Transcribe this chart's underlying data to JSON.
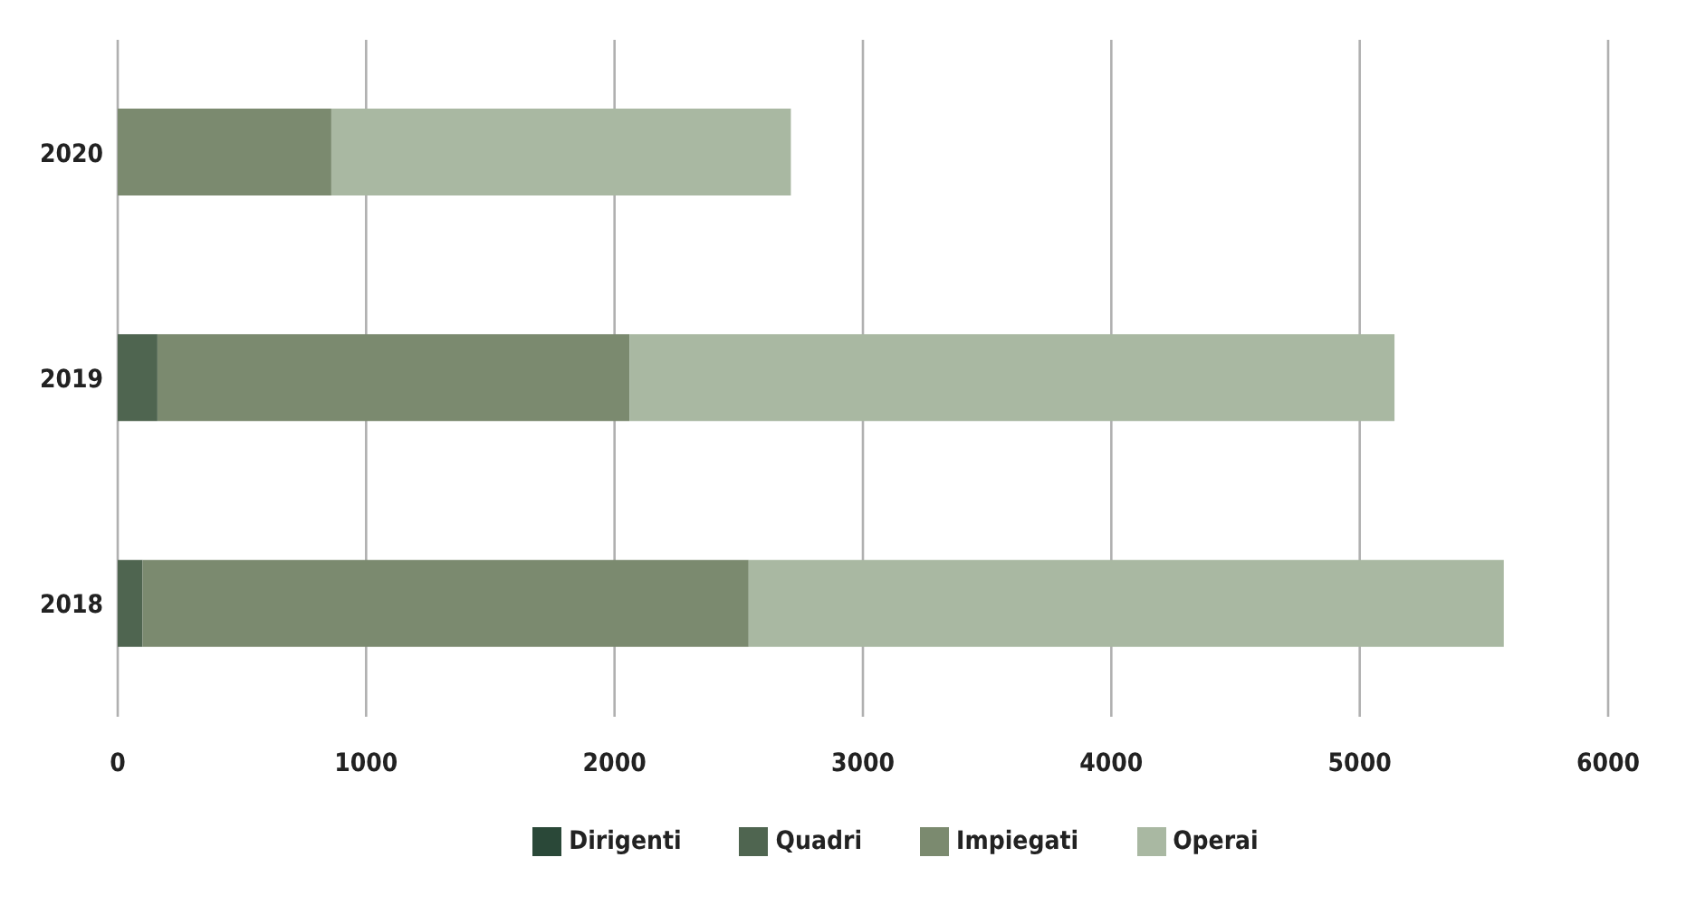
{
  "chart_data": {
    "type": "bar",
    "orientation": "horizontal",
    "stacked": true,
    "categories": [
      "2020",
      "2019",
      "2018"
    ],
    "series": [
      {
        "name": "Dirigenti",
        "color": "#2a4838",
        "values": [
          0,
          0,
          0
        ]
      },
      {
        "name": "Quadri",
        "color": "#4f6550",
        "values": [
          0,
          160,
          100
        ]
      },
      {
        "name": "Impiegati",
        "color": "#7b8a6f",
        "values": [
          860,
          1900,
          2440
        ]
      },
      {
        "name": "Operai",
        "color": "#a9b8a2",
        "values": [
          1850,
          3080,
          3040
        ]
      }
    ],
    "xlim": [
      0,
      6000
    ],
    "xticks": [
      0,
      1000,
      2000,
      3000,
      4000,
      5000,
      6000
    ],
    "grid": "x",
    "legend": "bottom"
  }
}
